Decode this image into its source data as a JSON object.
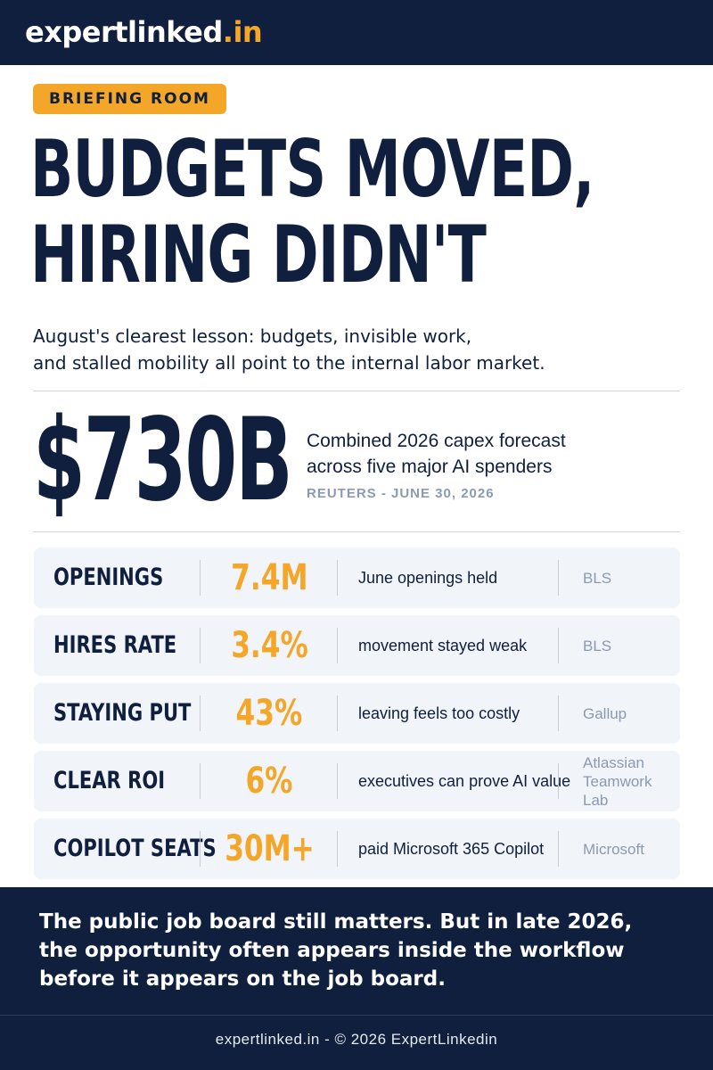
{
  "brand": {
    "name": "expertlinked",
    "tld": ".in"
  },
  "badge": "BRIEFING ROOM",
  "headline": {
    "line1": "BUDGETS MOVED,",
    "line2": "HIRING DIDN'T"
  },
  "subhead": {
    "line1": "August's clearest lesson: budgets, invisible work,",
    "line2": "and stalled mobility all point to the internal labor market."
  },
  "capex": {
    "figure": "$730B",
    "desc_line1": "Combined 2026 capex forecast",
    "desc_line2": "across five major AI spenders",
    "source": "REUTERS - JUNE 30, 2026"
  },
  "stats": [
    {
      "label": "OPENINGS",
      "value": "7.4M",
      "note": "June openings held",
      "source": "BLS"
    },
    {
      "label": "HIRES RATE",
      "value": "3.4%",
      "note": "movement stayed weak",
      "source": "BLS"
    },
    {
      "label": "STAYING PUT",
      "value": "43%",
      "note": "leaving feels too costly",
      "source": "Gallup"
    },
    {
      "label": "CLEAR ROI",
      "value": "6%",
      "note": "executives can prove AI value",
      "source": "Atlassian Teamwork Lab"
    },
    {
      "label": "COPILOT SEATS",
      "value": "30M+",
      "note": "paid Microsoft 365 Copilot",
      "source": "Microsoft"
    }
  ],
  "closing": {
    "line1": "The public job board still matters. But in late 2026,",
    "line2": "the opportunity often appears inside the workflow",
    "line3": "before it appears on the job board."
  },
  "footer": "expertlinked.in - © 2026 ExpertLinkedin",
  "colors": {
    "navy": "#0f1f3d",
    "accent": "#f4a629",
    "muted": "#8b9ab2"
  }
}
